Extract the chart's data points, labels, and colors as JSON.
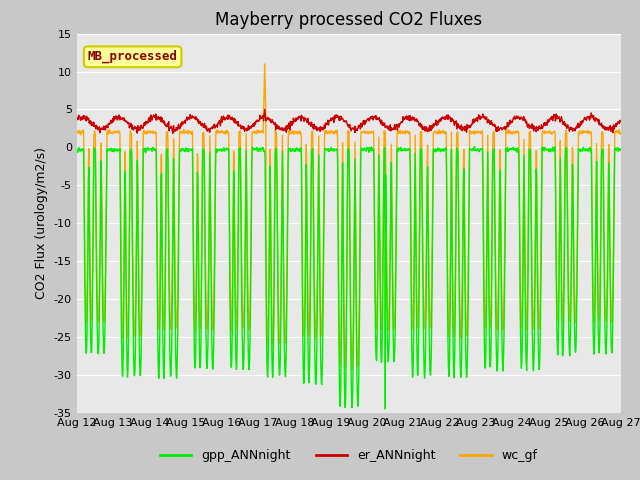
{
  "title": "Mayberry processed CO2 Fluxes",
  "ylabel": "CO2 Flux (urology/m2/s)",
  "ylim": [
    -35,
    15
  ],
  "yticks": [
    -35,
    -30,
    -25,
    -20,
    -15,
    -10,
    -5,
    0,
    5,
    10,
    15
  ],
  "x_tick_labels": [
    "Aug 12",
    "Aug 13",
    "Aug 14",
    "Aug 15",
    "Aug 16",
    "Aug 17",
    "Aug 18",
    "Aug 19",
    "Aug 20",
    "Aug 21",
    "Aug 22",
    "Aug 23",
    "Aug 24",
    "Aug 25",
    "Aug 26",
    "Aug 27"
  ],
  "legend_label": "MB_processed",
  "legend_label_color": "#8B0000",
  "legend_bg": "#FFFF99",
  "legend_edge": "#CCCC00",
  "series_labels": [
    "gpp_ANNnight",
    "er_ANNnight",
    "wc_gf"
  ],
  "colors": [
    "#00EE00",
    "#CC0000",
    "#FFA500"
  ],
  "line_width": 1.0,
  "fig_bg": "#C8C8C8",
  "plot_bg": "#E8E8E8",
  "title_fontsize": 12,
  "axis_fontsize": 9,
  "tick_fontsize": 8
}
